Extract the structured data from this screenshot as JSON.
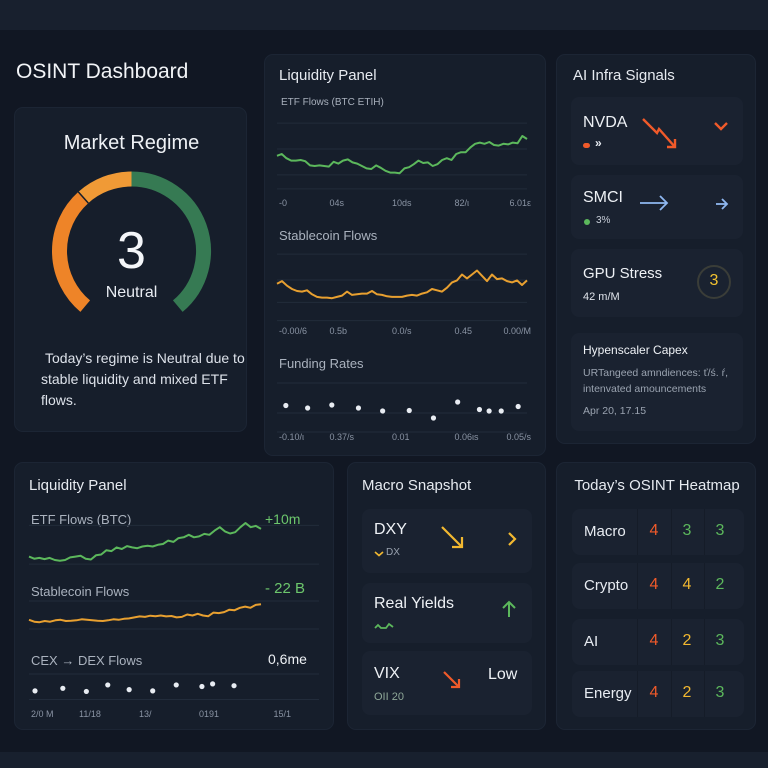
{
  "page": {
    "title": "OSINT Dashboard"
  },
  "colors": {
    "green": "#5cb85c",
    "orange": "#e8892b",
    "light_orange": "#f09a36",
    "gauge_green": "#367a53",
    "red": "#f05a2a",
    "yellow": "#f2b830",
    "blue": "#8fb8f0"
  },
  "market_regime": {
    "title": "Market Regime",
    "value": "3",
    "label": "Neutral",
    "description": "Today’s regime is Neutral due to stable liquidity and mixed ETF flows.",
    "gauge_segments": [
      {
        "name": "bearish",
        "from": 0,
        "to": 0.35,
        "color": "#ee8428"
      },
      {
        "name": "caution",
        "from": 0.35,
        "to": 0.5,
        "color": "#f09a36"
      },
      {
        "name": "bullish",
        "from": 0.5,
        "to": 1.0,
        "color": "#367a53"
      }
    ]
  },
  "liquidity_top": {
    "title": "Liquidity Panel",
    "etf": {
      "label": "ETF Flows (BTC ETIH)",
      "ticks": [
        "-0",
        "04s",
        "10ds",
        "82/ι",
        "6.01ε"
      ]
    },
    "stablecoin": {
      "label": "Stablecoin Flows",
      "ticks": [
        "-0.00/6",
        "0.5b",
        "0.0/s",
        "0.45",
        "0.00/M"
      ]
    },
    "funding": {
      "label": "Funding Rates",
      "ticks": [
        "-0.10/ι",
        "0.37/s",
        "0.01",
        "0.06ιs",
        "0.05/s"
      ]
    }
  },
  "ai_infra": {
    "title": "AI Infra Signals",
    "nvda": {
      "ticker": "NVDA",
      "sub": "»",
      "trend": "down"
    },
    "smci": {
      "ticker": "SMCI",
      "sub": "3%",
      "trend": "flat"
    },
    "gpu": {
      "label": "GPU Stress",
      "sub": "42 m/M",
      "score": "3"
    },
    "capex": {
      "title": "Hypenscaler Capex",
      "body": "URTangeed amndiences: ť/ś. ŕ, intenvated amouncements",
      "timestamp": "Apr 20, 17.15"
    }
  },
  "liquidity_bottom": {
    "title": "Liquidity Panel",
    "etf": {
      "label": "ETF Flows (BTC)",
      "value": "+10m"
    },
    "stablecoin": {
      "label": "Stablecoin Flows",
      "value": "- 22 B"
    },
    "cex": {
      "label": "CEX → DEX Flows",
      "value": "0,6me"
    },
    "ticks": [
      "2/0 M",
      "11/18",
      "13/",
      "0191",
      "15/1"
    ]
  },
  "macro": {
    "title": "Macro Snapshot",
    "dxy": {
      "label": "DXY",
      "sub": "DX",
      "trend": "down"
    },
    "real_yields": {
      "label": "Real Yields",
      "trend": "up"
    },
    "vix": {
      "label": "VIX",
      "sub": "OII 20",
      "status": "Low",
      "trend": "down"
    }
  },
  "heatmap": {
    "title": "Today’s OSINT Heatmap",
    "rows": [
      {
        "label": "Macro",
        "values": [
          4,
          3,
          3
        ]
      },
      {
        "label": "Crypto",
        "values": [
          4,
          4,
          2
        ]
      },
      {
        "label": "AI",
        "values": [
          4,
          2,
          3
        ]
      },
      {
        "label": "Energy",
        "values": [
          4,
          2,
          3
        ]
      }
    ],
    "value_colors": {
      "4": "#f05a2a",
      "3": "#5cb85c",
      "2_crypto": "#5cb85c"
    }
  },
  "chart_data": [
    {
      "type": "line",
      "title": "ETF Flows (BTC ETIH)",
      "xlabel": "",
      "ylabel": "",
      "x_ticks": [
        "-0",
        "04s",
        "10ds",
        "82/ι",
        "6.01ε"
      ],
      "ylim": [
        0,
        1
      ],
      "series": [
        {
          "name": "ETF Flows",
          "color": "#5cb85c",
          "values": [
            0.52,
            0.55,
            0.48,
            0.44,
            0.44,
            0.45,
            0.43,
            0.36,
            0.35,
            0.36,
            0.35,
            0.34,
            0.42,
            0.39,
            0.44,
            0.46,
            0.41,
            0.39,
            0.35,
            0.31,
            0.3,
            0.36,
            0.32,
            0.27,
            0.24,
            0.24,
            0.23,
            0.31,
            0.33,
            0.38,
            0.44,
            0.4,
            0.41,
            0.35,
            0.38,
            0.45,
            0.48,
            0.45,
            0.55,
            0.58,
            0.58,
            0.66,
            0.72,
            0.74,
            0.72,
            0.75,
            0.7,
            0.69,
            0.72,
            0.71,
            0.74,
            0.73,
            0.85,
            0.8
          ]
        }
      ]
    },
    {
      "type": "line",
      "title": "Stablecoin Flows",
      "x_ticks": [
        "-0.00/6",
        "0.5b",
        "0.0/s",
        "0.45",
        "0.00/M"
      ],
      "ylim": [
        0,
        1
      ],
      "series": [
        {
          "name": "Stablecoin Flows",
          "color": "#e8a030",
          "values": [
            0.58,
            0.62,
            0.55,
            0.5,
            0.47,
            0.46,
            0.48,
            0.42,
            0.38,
            0.37,
            0.37,
            0.36,
            0.38,
            0.4,
            0.46,
            0.41,
            0.42,
            0.43,
            0.43,
            0.47,
            0.42,
            0.41,
            0.39,
            0.38,
            0.38,
            0.38,
            0.4,
            0.41,
            0.4,
            0.43,
            0.45,
            0.5,
            0.48,
            0.46,
            0.52,
            0.6,
            0.63,
            0.72,
            0.66,
            0.72,
            0.78,
            0.7,
            0.62,
            0.72,
            0.65,
            0.66,
            0.62,
            0.6,
            0.63,
            0.56,
            0.63
          ]
        }
      ]
    },
    {
      "type": "scatter",
      "title": "Funding Rates",
      "x_ticks": [
        "-0.10/ι",
        "0.37/s",
        "0.01",
        "0.06ιs",
        "0.05/s"
      ],
      "ylim": [
        0,
        1
      ],
      "series": [
        {
          "name": "Funding Rates",
          "color": "#e8ecf2",
          "x": [
            0.02,
            0.11,
            0.21,
            0.32,
            0.42,
            0.53,
            0.63,
            0.73,
            0.82,
            0.86,
            0.91,
            0.98
          ],
          "values": [
            0.55,
            0.5,
            0.56,
            0.5,
            0.44,
            0.45,
            0.3,
            0.62,
            0.47,
            0.44,
            0.44,
            0.53
          ]
        }
      ]
    },
    {
      "type": "line",
      "title": "ETF Flows (BTC)",
      "ylim": [
        0,
        1
      ],
      "series": [
        {
          "name": "ETF Flows (BTC)",
          "color": "#5cb85c",
          "values": [
            0.2,
            0.15,
            0.17,
            0.14,
            0.17,
            0.12,
            0.1,
            0.12,
            0.18,
            0.2,
            0.22,
            0.15,
            0.13,
            0.23,
            0.25,
            0.35,
            0.33,
            0.42,
            0.38,
            0.45,
            0.42,
            0.4,
            0.44,
            0.46,
            0.44,
            0.48,
            0.5,
            0.58,
            0.55,
            0.64,
            0.66,
            0.72,
            0.66,
            0.68,
            0.74,
            0.72,
            0.82,
            0.9,
            0.8,
            0.75,
            0.78,
            0.9,
            1.0,
            0.9,
            0.93,
            0.86
          ]
        }
      ]
    },
    {
      "type": "line",
      "title": "Stablecoin Flows",
      "ylim": [
        0,
        1
      ],
      "series": [
        {
          "name": "Stablecoin Flows",
          "color": "#e8a030",
          "values": [
            0.3,
            0.22,
            0.2,
            0.25,
            0.22,
            0.28,
            0.3,
            0.25,
            0.26,
            0.28,
            0.32,
            0.3,
            0.28,
            0.26,
            0.25,
            0.28,
            0.32,
            0.3,
            0.34,
            0.36,
            0.4,
            0.44,
            0.42,
            0.47,
            0.45,
            0.48,
            0.44,
            0.46,
            0.4,
            0.42,
            0.52,
            0.48,
            0.55,
            0.48,
            0.45,
            0.6,
            0.58,
            0.62,
            0.72,
            0.7,
            0.8,
            0.85,
            0.8,
            0.92,
            0.95
          ]
        }
      ]
    },
    {
      "type": "scatter",
      "title": "CEX → DEX Flows",
      "x_ticks": [
        "2/0 M",
        "11/18",
        "13/",
        "0191",
        "15/1"
      ],
      "ylim": [
        0,
        1
      ],
      "series": [
        {
          "name": "CEX → DEX Flows",
          "color": "#e8ecf2",
          "x": [
            0.0,
            0.13,
            0.24,
            0.34,
            0.44,
            0.55,
            0.66,
            0.78,
            0.83,
            0.93
          ],
          "values": [
            0.35,
            0.45,
            0.33,
            0.58,
            0.4,
            0.35,
            0.58,
            0.52,
            0.62,
            0.55
          ]
        }
      ]
    }
  ]
}
